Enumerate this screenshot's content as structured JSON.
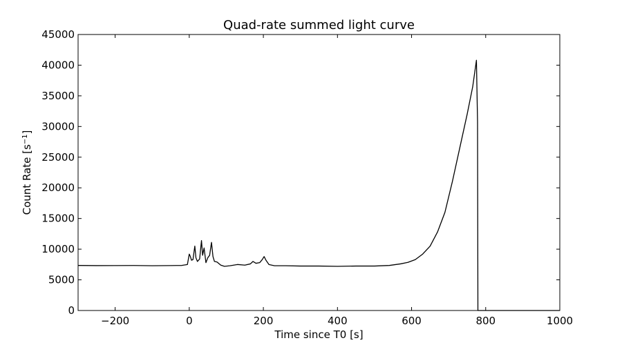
{
  "chart_data": {
    "type": "line",
    "title": "Quad-rate summed light curve",
    "xlabel": "Time since T0 [s]",
    "ylabel_base": "Count Rate [s",
    "ylabel_exp": "−1",
    "ylabel_close": "]",
    "xlim": [
      -300,
      1000
    ],
    "ylim": [
      0,
      45000
    ],
    "xticks": [
      -200,
      0,
      200,
      400,
      600,
      800,
      1000
    ],
    "xtick_labels": [
      "−200",
      "0",
      "200",
      "400",
      "600",
      "800",
      "1000"
    ],
    "yticks": [
      0,
      5000,
      10000,
      15000,
      20000,
      25000,
      30000,
      35000,
      40000,
      45000
    ],
    "ytick_labels": [
      "0",
      "5000",
      "10000",
      "15000",
      "20000",
      "25000",
      "30000",
      "35000",
      "40000",
      "45000"
    ],
    "grid": false,
    "series": [
      {
        "color": "#000000",
        "points": [
          [
            -300,
            7350
          ],
          [
            -250,
            7320
          ],
          [
            -200,
            7330
          ],
          [
            -150,
            7340
          ],
          [
            -100,
            7300
          ],
          [
            -50,
            7330
          ],
          [
            -20,
            7350
          ],
          [
            -5,
            7500
          ],
          [
            0,
            9200
          ],
          [
            3,
            8800
          ],
          [
            6,
            8200
          ],
          [
            10,
            8300
          ],
          [
            15,
            10500
          ],
          [
            18,
            8600
          ],
          [
            22,
            8000
          ],
          [
            28,
            8400
          ],
          [
            33,
            11400
          ],
          [
            36,
            9000
          ],
          [
            40,
            10200
          ],
          [
            45,
            7800
          ],
          [
            50,
            8600
          ],
          [
            55,
            9000
          ],
          [
            60,
            11100
          ],
          [
            64,
            8800
          ],
          [
            68,
            8000
          ],
          [
            75,
            7900
          ],
          [
            85,
            7400
          ],
          [
            95,
            7200
          ],
          [
            110,
            7300
          ],
          [
            130,
            7500
          ],
          [
            150,
            7400
          ],
          [
            165,
            7600
          ],
          [
            172,
            8000
          ],
          [
            180,
            7700
          ],
          [
            190,
            7800
          ],
          [
            197,
            8300
          ],
          [
            202,
            8800
          ],
          [
            207,
            8200
          ],
          [
            215,
            7500
          ],
          [
            230,
            7300
          ],
          [
            260,
            7300
          ],
          [
            300,
            7250
          ],
          [
            350,
            7250
          ],
          [
            400,
            7200
          ],
          [
            450,
            7250
          ],
          [
            500,
            7250
          ],
          [
            540,
            7350
          ],
          [
            570,
            7600
          ],
          [
            590,
            7850
          ],
          [
            610,
            8300
          ],
          [
            630,
            9200
          ],
          [
            650,
            10500
          ],
          [
            670,
            12800
          ],
          [
            690,
            16000
          ],
          [
            710,
            21000
          ],
          [
            730,
            26500
          ],
          [
            750,
            32000
          ],
          [
            765,
            36500
          ],
          [
            775,
            40800
          ],
          [
            778,
            30800
          ],
          [
            779,
            0
          ],
          [
            790,
            0
          ],
          [
            850,
            0
          ],
          [
            1000,
            0
          ]
        ]
      }
    ]
  }
}
